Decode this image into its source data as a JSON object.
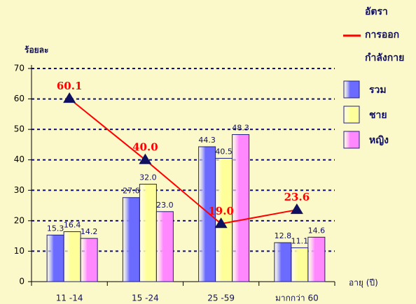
{
  "chart_data": {
    "type": "bar",
    "y_label": "ร้อยละ",
    "x_label": "อายุ (ปี)",
    "categories": [
      "11 -14",
      "15 -24",
      "25 -59",
      "มากกว่า 60"
    ],
    "series": [
      {
        "name": "รวม",
        "color": "#6b6bff",
        "values": [
          15.3,
          27.6,
          44.3,
          12.8
        ],
        "value_labels": [
          "15.3",
          "27.6",
          "44.3",
          "12.8"
        ]
      },
      {
        "name": "ชาย",
        "color": "#ffff99",
        "values": [
          16.4,
          32.0,
          40.5,
          11.1
        ],
        "value_labels": [
          "16.4",
          "32.0",
          "40.5",
          "11.1"
        ]
      },
      {
        "name": "หญิง",
        "color": "#ff88ff",
        "values": [
          14.2,
          23.0,
          48.3,
          14.6
        ],
        "value_labels": [
          "14.2",
          "23.0",
          "48.3",
          "14.6"
        ]
      },
      {
        "name": "อัตรา\nการออก\nกำลังกาย",
        "type": "line",
        "color": "#ff0000",
        "marker_color": "#101060",
        "values": [
          60.1,
          40.0,
          19.0,
          23.6
        ],
        "value_labels": [
          "60.1",
          "40.0",
          "19.0",
          "23.6"
        ]
      }
    ],
    "ylim": [
      0,
      70
    ],
    "yticks": [
      0,
      10,
      20,
      30,
      40,
      50,
      60,
      70
    ],
    "grid": true
  }
}
